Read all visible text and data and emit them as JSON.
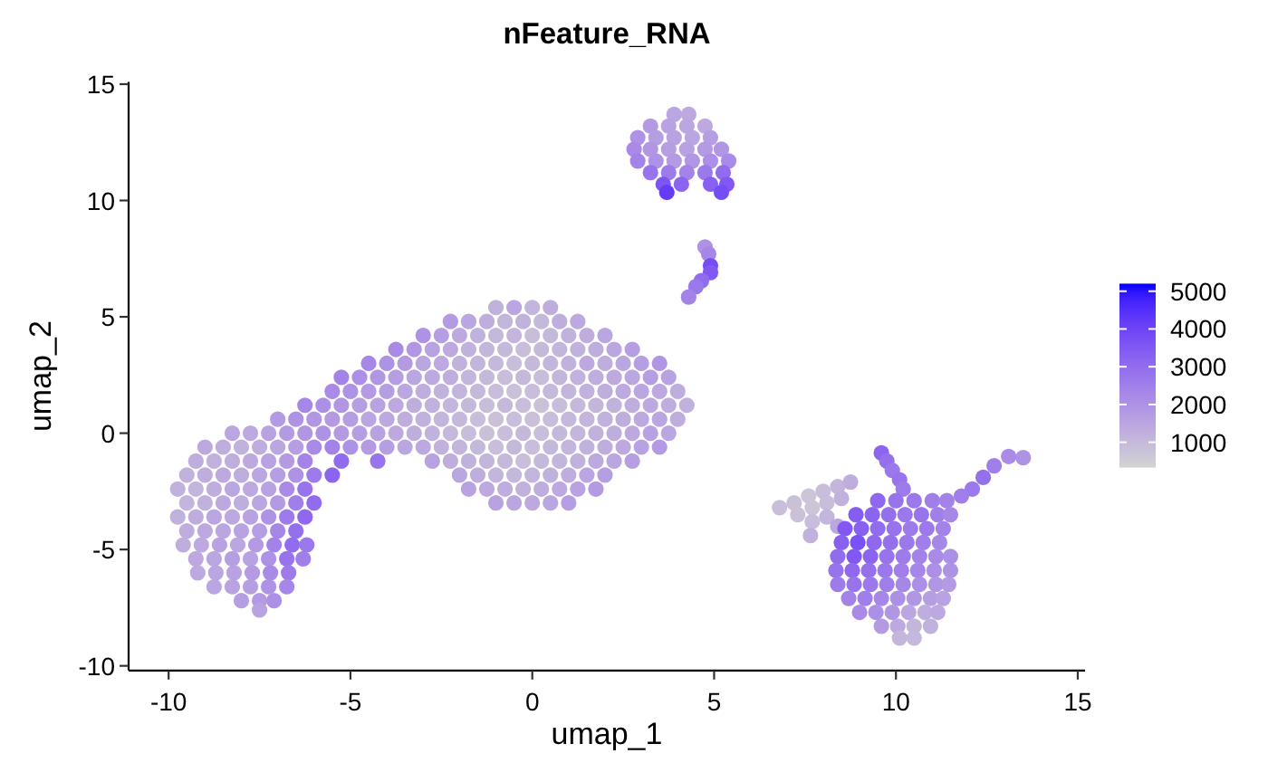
{
  "chart_data": {
    "type": "scatter",
    "title": "nFeature_RNA",
    "xlabel": "umap_1",
    "ylabel": "umap_2",
    "marker": "circle",
    "xlim": [
      -11.1,
      15.2
    ],
    "xticks": [
      -10,
      -5,
      0,
      5,
      10,
      15
    ],
    "ylim": [
      -10.2,
      15.1
    ],
    "yticks": [
      -10,
      -5,
      0,
      5,
      10,
      15
    ],
    "clim": [
      330,
      5200
    ],
    "cticks": [
      1000,
      2000,
      3000,
      4000,
      5000
    ],
    "x": [
      -1,
      -0.5,
      0,
      0.5,
      -2.25,
      -1.75,
      -1.25,
      -0.75,
      -0.25,
      0.25,
      0.75,
      1.25,
      -3,
      -2.5,
      -2,
      -1.5,
      -1,
      -0.5,
      0,
      0.5,
      1,
      1.5,
      2,
      -3.75,
      -3.25,
      -2.75,
      -2.25,
      -1.75,
      -1.25,
      -0.75,
      -0.25,
      0.25,
      0.75,
      1.25,
      1.75,
      2.25,
      2.75,
      -4.5,
      -4,
      -3.5,
      -3,
      -2.5,
      -2,
      -1.5,
      -1,
      -0.5,
      0,
      0.5,
      1,
      1.5,
      2,
      2.5,
      3,
      3.5,
      -5.25,
      -4.75,
      -4.25,
      -3.75,
      -3.25,
      -2.75,
      -2.25,
      -1.75,
      -1.25,
      -0.75,
      -0.25,
      0.25,
      0.75,
      1.25,
      1.75,
      2.25,
      2.75,
      3.25,
      3.75,
      -5.5,
      -5,
      -4.5,
      -4,
      -3.5,
      -3,
      -2.5,
      -2,
      -1.5,
      -1,
      -0.5,
      0,
      0.5,
      1,
      1.5,
      2,
      2.5,
      3,
      3.5,
      4,
      -6.25,
      -5.75,
      -5.25,
      -4.75,
      -4.25,
      -3.75,
      -3.25,
      -2.75,
      -2.25,
      -1.75,
      -1.25,
      -0.75,
      -0.25,
      0.25,
      0.75,
      1.25,
      1.75,
      2.25,
      2.75,
      3.25,
      3.75,
      4.25,
      -7,
      -6.5,
      -6,
      -5.5,
      -5,
      -4.5,
      -4,
      -3.5,
      -3,
      -2.5,
      -2,
      -1.5,
      -1,
      -0.5,
      0,
      0.5,
      1,
      1.5,
      2,
      2.5,
      3,
      3.5,
      4,
      -8.25,
      -7.75,
      -7.25,
      -6.75,
      -6.25,
      -5.75,
      -5.25,
      -4.75,
      -4.25,
      -3.75,
      -3.25,
      -2.75,
      -2.25,
      -1.75,
      -1.25,
      -0.75,
      -0.25,
      0.25,
      0.75,
      1.25,
      1.75,
      2.25,
      2.75,
      3.25,
      3.75,
      -9,
      -8.5,
      -8,
      -7.5,
      -7,
      -6.5,
      -6,
      -5.5,
      -5,
      -4.5,
      -4,
      -3.5,
      -3,
      -2.5,
      -2,
      -1.5,
      -1,
      -0.5,
      0,
      0.5,
      1,
      1.5,
      2,
      2.5,
      3,
      3.5,
      -9.25,
      -8.75,
      -8.25,
      -7.75,
      -7.25,
      -6.75,
      -6.25,
      -5.25,
      -4.25,
      -2.75,
      -2.25,
      -1.75,
      -1.25,
      -0.75,
      -0.25,
      0.25,
      0.75,
      1.25,
      1.75,
      2.25,
      2.75,
      -9.5,
      -9,
      -8.5,
      -8,
      -7.5,
      -7,
      -6.5,
      -6,
      -5.5,
      -2,
      -1.5,
      -1,
      -0.5,
      0,
      0.5,
      1,
      1.5,
      2,
      -9.75,
      -9.25,
      -8.75,
      -8.25,
      -7.75,
      -7.25,
      -6.75,
      -6.25,
      -1.75,
      -1.25,
      -0.75,
      -0.25,
      0.25,
      0.75,
      1.25,
      1.75,
      -9.5,
      -9,
      -8.5,
      -8,
      -7.5,
      -7,
      -6.5,
      -6,
      -1,
      -0.5,
      0,
      0.5,
      1,
      -9.75,
      -9.25,
      -8.75,
      -8.25,
      -7.75,
      -7.25,
      -6.75,
      -6.25,
      -9.5,
      -9,
      -8.5,
      -8,
      -7.5,
      -7,
      -6.5,
      -9.6,
      -9.1,
      -8.6,
      -8.1,
      -7.6,
      -7.1,
      -6.6,
      -6.2,
      -9.25,
      -8.75,
      -8.25,
      -7.75,
      -7.25,
      -6.75,
      -6.3,
      -9.2,
      -8.7,
      -8.2,
      -7.7,
      -7.2,
      -6.7,
      -8.75,
      -8.25,
      -7.75,
      -7.25,
      -6.75,
      -8,
      -7.5,
      -7.1,
      -7.5,
      3.9,
      4.3,
      3.25,
      3.75,
      4.25,
      4.75,
      2.9,
      3.4,
      3.9,
      4.4,
      4.9,
      2.8,
      3.25,
      3.75,
      4.25,
      4.75,
      5.2,
      2.9,
      3.4,
      3.9,
      4.4,
      4.9,
      5.4,
      3.25,
      3.75,
      4.25,
      4.75,
      5.25,
      3.6,
      4.1,
      4.9,
      5.35,
      3.7,
      5.2,
      4.75,
      4.85,
      4.9,
      4.9,
      4.65,
      4.5,
      4.3,
      6.8,
      7.2,
      7.6,
      8,
      8.4,
      8.75,
      7.3,
      7.7,
      8.1,
      8.5,
      7.7,
      8.1,
      8.4,
      7.65,
      9.6,
      9.75,
      9.9,
      10.1,
      10.2,
      13.5,
      13.1,
      12.7,
      12.4,
      12.1,
      11.8,
      9.5,
      10,
      10.5,
      11,
      11.4,
      8.9,
      9.35,
      9.8,
      10.25,
      10.7,
      11.15,
      11.5,
      8.6,
      9.05,
      9.5,
      9.95,
      10.4,
      10.85,
      11.3,
      8.5,
      8.95,
      9.4,
      9.85,
      10.3,
      10.75,
      11.2,
      8.4,
      8.85,
      9.3,
      9.75,
      10.2,
      10.65,
      11.1,
      11.5,
      8.35,
      8.8,
      9.25,
      9.7,
      10.15,
      10.6,
      11.05,
      11.5,
      8.4,
      8.85,
      9.3,
      9.75,
      10.2,
      10.65,
      11.1,
      11.45,
      8.7,
      9.15,
      9.6,
      10.05,
      10.5,
      10.95,
      11.3,
      9,
      9.45,
      9.9,
      10.35,
      10.8,
      11.15,
      9.6,
      10.05,
      10.5,
      10.95,
      10.1,
      10.5
    ],
    "values": [
      5.4,
      5.4,
      5.4,
      5.4,
      4.8,
      4.8,
      4.8,
      4.8,
      4.8,
      4.8,
      4.8,
      4.8,
      4.2,
      4.2,
      4.2,
      4.2,
      4.2,
      4.2,
      4.2,
      4.2,
      4.2,
      4.2,
      4.2,
      3.6,
      3.6,
      3.6,
      3.6,
      3.6,
      3.6,
      3.6,
      3.6,
      3.6,
      3.6,
      3.6,
      3.6,
      3.6,
      3.6,
      3,
      3,
      3,
      3,
      3,
      3,
      3,
      3,
      3,
      3,
      3,
      3,
      3,
      3,
      3,
      3,
      3,
      2.4,
      2.4,
      2.4,
      2.4,
      2.4,
      2.4,
      2.4,
      2.4,
      2.4,
      2.4,
      2.4,
      2.4,
      2.4,
      2.4,
      2.4,
      2.4,
      2.4,
      2.4,
      2.4,
      1.8,
      1.8,
      1.8,
      1.8,
      1.8,
      1.8,
      1.8,
      1.8,
      1.8,
      1.8,
      1.8,
      1.8,
      1.8,
      1.8,
      1.8,
      1.8,
      1.8,
      1.8,
      1.8,
      1.8,
      1.2,
      1.2,
      1.2,
      1.2,
      1.2,
      1.2,
      1.2,
      1.2,
      1.2,
      1.2,
      1.2,
      1.2,
      1.2,
      1.2,
      1.2,
      1.2,
      1.2,
      1.2,
      1.2,
      1.2,
      1.2,
      1.2,
      0.6,
      0.6,
      0.6,
      0.6,
      0.6,
      0.6,
      0.6,
      0.6,
      0.6,
      0.6,
      0.6,
      0.6,
      0.6,
      0.6,
      0.6,
      0.6,
      0.6,
      0.6,
      0.6,
      0.6,
      0.6,
      0.6,
      0.6,
      0,
      0,
      0,
      0,
      0,
      0,
      0,
      0,
      0,
      0,
      0,
      0,
      0,
      0,
      0,
      0,
      0,
      0,
      0,
      0,
      0,
      0,
      0,
      0,
      0,
      -0.6,
      -0.6,
      -0.6,
      -0.6,
      -0.6,
      -0.6,
      -0.6,
      -0.6,
      -0.6,
      -0.6,
      -0.6,
      -0.6,
      -0.6,
      -0.6,
      -0.6,
      -0.6,
      -0.6,
      -0.6,
      -0.6,
      -0.6,
      -0.6,
      -0.6,
      -0.6,
      -0.6,
      -0.6,
      -0.6,
      -1.2,
      -1.2,
      -1.2,
      -1.2,
      -1.2,
      -1.2,
      -1.2,
      -1.2,
      -1.2,
      -1.2,
      -1.2,
      -1.2,
      -1.2,
      -1.2,
      -1.2,
      -1.2,
      -1.2,
      -1.2,
      -1.2,
      -1.2,
      -1.2,
      -1.8,
      -1.8,
      -1.8,
      -1.8,
      -1.8,
      -1.8,
      -1.8,
      -1.8,
      -1.8,
      -1.8,
      -1.8,
      -1.8,
      -1.8,
      -1.8,
      -1.8,
      -1.8,
      -1.8,
      -1.8,
      -2.4,
      -2.4,
      -2.4,
      -2.4,
      -2.4,
      -2.4,
      -2.4,
      -2.4,
      -2.4,
      -2.4,
      -2.4,
      -2.4,
      -2.4,
      -2.4,
      -2.4,
      -2.4,
      -3,
      -3,
      -3,
      -3,
      -3,
      -3,
      -3,
      -3,
      -3,
      -3,
      -3,
      -3,
      -3,
      -3.6,
      -3.6,
      -3.6,
      -3.6,
      -3.6,
      -3.6,
      -3.6,
      -3.6,
      -4.2,
      -4.2,
      -4.2,
      -4.2,
      -4.2,
      -4.2,
      -4.2,
      -4.8,
      -4.8,
      -4.8,
      -4.8,
      -4.8,
      -4.8,
      -4.8,
      -4.8,
      -5.4,
      -5.4,
      -5.4,
      -5.4,
      -5.4,
      -5.4,
      -5.4,
      -6,
      -6,
      -6,
      -6,
      -6,
      -6,
      -6.6,
      -6.6,
      -6.6,
      -6.6,
      -6.6,
      -7.2,
      -7.2,
      -7.2,
      -7.6,
      13.7,
      13.7,
      13.2,
      13.2,
      13.2,
      13.2,
      12.7,
      12.7,
      12.7,
      12.7,
      12.7,
      12.2,
      12.2,
      12.2,
      12.2,
      12.2,
      12.2,
      11.7,
      11.7,
      11.7,
      11.7,
      11.7,
      11.7,
      11.2,
      11.2,
      11.2,
      11.2,
      11.2,
      10.7,
      10.7,
      10.7,
      10.7,
      10.35,
      10.35,
      8,
      7.7,
      7.2,
      6.9,
      6.55,
      6.3,
      5.85,
      -3.2,
      -3,
      -2.7,
      -2.5,
      -2.3,
      -2.1,
      -3.5,
      -3.2,
      -3,
      -2.8,
      -3.8,
      -3.6,
      -4,
      -4.4,
      -0.85,
      -1.2,
      -1.6,
      -2,
      -2.4,
      -1.05,
      -1,
      -1.4,
      -1.9,
      -2.4,
      -2.7,
      -2.9,
      -2.9,
      -2.9,
      -2.9,
      -2.9,
      -3.5,
      -3.5,
      -3.5,
      -3.5,
      -3.5,
      -3.5,
      -3.5,
      -4.1,
      -4.1,
      -4.1,
      -4.1,
      -4.1,
      -4.1,
      -4.1,
      -4.7,
      -4.7,
      -4.7,
      -4.7,
      -4.7,
      -4.7,
      -4.7,
      -5.3,
      -5.3,
      -5.3,
      -5.3,
      -5.3,
      -5.3,
      -5.3,
      -5.3,
      -5.9,
      -5.9,
      -5.9,
      -5.9,
      -5.9,
      -5.9,
      -5.9,
      -5.9,
      -6.5,
      -6.5,
      -6.5,
      -6.5,
      -6.5,
      -6.5,
      -6.5,
      -6.5,
      -7.1,
      -7.1,
      -7.1,
      -7.1,
      -7.1,
      -7.1,
      -7.1,
      -7.7,
      -7.7,
      -7.7,
      -7.7,
      -7.7,
      -7.7,
      -8.3,
      -8.3,
      -8.3,
      -8.3,
      -8.8,
      -8.8
    ],
    "cvalues": [
      1200,
      1500,
      1100,
      1300,
      1800,
      1500,
      1300,
      1100,
      1200,
      1000,
      1300,
      1400,
      2000,
      1700,
      1400,
      1200,
      1000,
      1100,
      900,
      1000,
      1200,
      1300,
      1500,
      2200,
      1900,
      1600,
      1400,
      1200,
      1100,
      1000,
      900,
      1000,
      1100,
      1200,
      1300,
      1500,
      1700,
      2300,
      2000,
      1800,
      1500,
      1400,
      1200,
      1100,
      1000,
      900,
      1000,
      1100,
      1200,
      1400,
      1300,
      1500,
      1700,
      1900,
      2400,
      2100,
      1900,
      1700,
      1500,
      1400,
      1300,
      1100,
      1000,
      900,
      1000,
      900,
      1100,
      1200,
      1300,
      1400,
      1500,
      1700,
      1600,
      2200,
      2000,
      1800,
      1700,
      1500,
      1300,
      1200,
      1100,
      1000,
      900,
      800,
      900,
      1000,
      1100,
      1200,
      1300,
      1400,
      1500,
      1400,
      1300,
      2300,
      2100,
      1900,
      1700,
      1600,
      1400,
      1300,
      1200,
      1100,
      1000,
      900,
      1000,
      900,
      800,
      900,
      1000,
      1100,
      1200,
      1300,
      1400,
      1300,
      1200,
      1800,
      2000,
      1900,
      1800,
      1700,
      1500,
      1400,
      1300,
      1200,
      1100,
      1000,
      900,
      800,
      900,
      800,
      900,
      1000,
      1100,
      1200,
      1300,
      1400,
      1500,
      1300,
      1500,
      1400,
      1600,
      1800,
      1900,
      2000,
      1800,
      1700,
      1600,
      1400,
      1300,
      1200,
      1000,
      900,
      800,
      900,
      1000,
      900,
      1000,
      1100,
      1200,
      1300,
      1400,
      1600,
      1500,
      1400,
      1300,
      1200,
      1300,
      1500,
      1700,
      2200,
      2400,
      2000,
      1800,
      1700,
      1500,
      1400,
      1200,
      1100,
      1000,
      900,
      1000,
      900,
      1000,
      1100,
      1200,
      1300,
      1400,
      1600,
      1800,
      1300,
      1200,
      1300,
      1400,
      1600,
      1800,
      2400,
      3000,
      2800,
      1600,
      1300,
      1200,
      1100,
      1000,
      900,
      1000,
      1100,
      1200,
      1400,
      1500,
      1700,
      1200,
      1300,
      1400,
      1300,
      1500,
      1700,
      2000,
      2600,
      3200,
      1500,
      1300,
      1100,
      1000,
      1100,
      1200,
      1300,
      1500,
      1700,
      1200,
      1100,
      1300,
      1500,
      1400,
      1600,
      2200,
      2800,
      1600,
      1400,
      1300,
      1200,
      1300,
      1400,
      1600,
      1800,
      1100,
      1200,
      1400,
      1300,
      1500,
      1800,
      2500,
      3000,
      1600,
      1500,
      1400,
      1500,
      1700,
      1200,
      1300,
      1500,
      1400,
      1600,
      2000,
      2600,
      3100,
      1300,
      1400,
      1500,
      1600,
      1700,
      2300,
      2900,
      1300,
      1400,
      1600,
      1500,
      1800,
      2400,
      3000,
      2700,
      1400,
      1500,
      1700,
      1600,
      2000,
      2800,
      2500,
      1400,
      1500,
      1600,
      1800,
      2200,
      2600,
      1500,
      1600,
      1700,
      2000,
      2300,
      1700,
      1800,
      2100,
      1600,
      1500,
      1400,
      1800,
      1600,
      1500,
      1400,
      2000,
      1700,
      1600,
      1500,
      1700,
      2200,
      1900,
      1700,
      1600,
      1800,
      1900,
      2400,
      2000,
      1800,
      1900,
      2100,
      2200,
      2800,
      2600,
      2400,
      2700,
      3000,
      3600,
      3200,
      3300,
      3500,
      4200,
      3800,
      2000,
      2300,
      3800,
      3500,
      3000,
      2700,
      2400,
      900,
      800,
      700,
      900,
      1100,
      1300,
      800,
      700,
      900,
      1200,
      900,
      1100,
      1500,
      1200,
      3200,
      2900,
      2700,
      2800,
      2600,
      2000,
      2200,
      2500,
      2900,
      2700,
      2500,
      3100,
      2800,
      2700,
      2500,
      2400,
      3400,
      3200,
      2900,
      2700,
      2800,
      2500,
      2300,
      3500,
      3300,
      3000,
      2800,
      2600,
      2700,
      2400,
      3300,
      3700,
      3100,
      2900,
      2700,
      2500,
      2300,
      3000,
      3500,
      3200,
      2800,
      2600,
      2400,
      2200,
      2100,
      2800,
      3100,
      2900,
      2700,
      2500,
      2300,
      2100,
      2000,
      2600,
      2800,
      2700,
      2500,
      2300,
      2100,
      1900,
      1800,
      2400,
      2500,
      2300,
      2100,
      1900,
      1700,
      1600,
      2200,
      2100,
      1900,
      1500,
      1300,
      1400,
      1800,
      1400,
      1100,
      1200,
      1100,
      1000
    ]
  }
}
